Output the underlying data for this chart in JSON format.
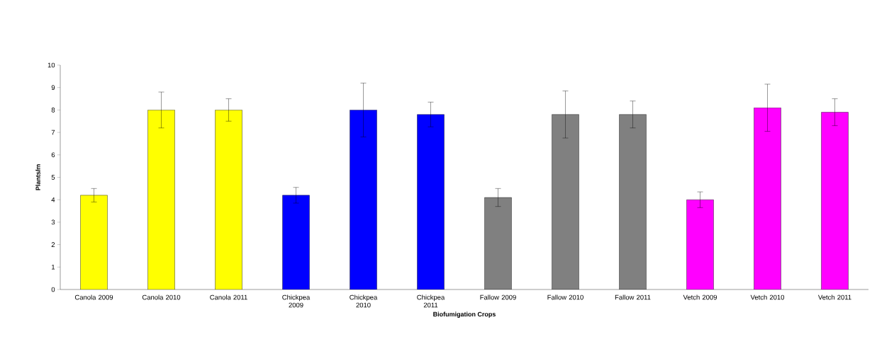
{
  "chart_data": {
    "type": "bar",
    "xlabel": "Biofumigation Crops",
    "ylabel": "Plants/m",
    "categories": [
      "Canola 2009",
      "Canola 2010",
      "Canola 2011",
      "Chickpea 2009",
      "Chickpea 2010",
      "Chickpea 2011",
      "Fallow 2009",
      "Fallow 2010",
      "Fallow 2011",
      "Vetch 2009",
      "Vetch 2010",
      "Vetch 2011"
    ],
    "values": [
      4.2,
      8.0,
      8.0,
      4.2,
      8.0,
      7.8,
      4.1,
      7.8,
      7.8,
      4.0,
      8.1,
      7.9
    ],
    "errors": [
      0.3,
      0.8,
      0.5,
      0.35,
      1.2,
      0.55,
      0.4,
      1.05,
      0.6,
      0.35,
      1.05,
      0.6
    ],
    "colors": [
      "#ffff00",
      "#ffff00",
      "#ffff00",
      "#0000ff",
      "#0000ff",
      "#0000ff",
      "#808080",
      "#808080",
      "#808080",
      "#ff00ff",
      "#ff00ff",
      "#ff00ff"
    ],
    "ylim": [
      0,
      10
    ],
    "yticks": [
      0,
      1,
      2,
      3,
      4,
      5,
      6,
      7,
      8,
      9,
      10
    ]
  }
}
